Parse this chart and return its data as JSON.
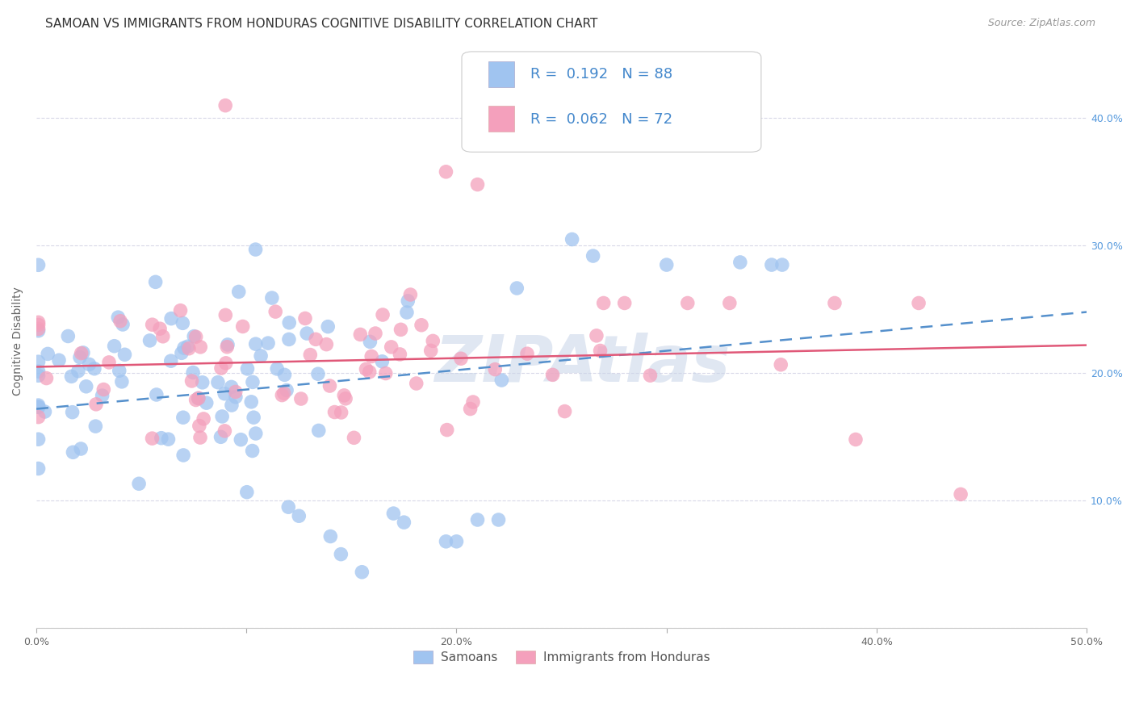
{
  "title": "SAMOAN VS IMMIGRANTS FROM HONDURAS COGNITIVE DISABILITY CORRELATION CHART",
  "source": "Source: ZipAtlas.com",
  "ylabel": "Cognitive Disability",
  "xlim": [
    0.0,
    0.5
  ],
  "ylim": [
    0.0,
    0.45
  ],
  "xtick_vals": [
    0.0,
    0.1,
    0.2,
    0.3,
    0.4,
    0.5
  ],
  "xtick_labels": [
    "0.0%",
    "",
    "20.0%",
    "",
    "40.0%",
    "50.0%"
  ],
  "ytick_right_vals": [
    0.1,
    0.2,
    0.3,
    0.4
  ],
  "ytick_right_labels": [
    "10.0%",
    "20.0%",
    "30.0%",
    "40.0%"
  ],
  "samoans_color": "#a0c4f0",
  "hondurans_color": "#f4a0bc",
  "trend_samoan_color": "#5590cc",
  "trend_honduran_color": "#e05878",
  "background_color": "#ffffff",
  "grid_color": "#d8d8e8",
  "watermark": "ZIPAtlas",
  "watermark_color": "#c8d4e8",
  "R_samoan": 0.192,
  "N_samoan": 88,
  "R_honduran": 0.062,
  "N_honduran": 72,
  "legend_color": "#4488cc",
  "title_fontsize": 11,
  "source_fontsize": 9,
  "axis_label_fontsize": 10,
  "tick_fontsize": 9,
  "legend_fontsize": 13,
  "right_tick_color": "#5599dd",
  "ylabel_color": "#666666",
  "xtick_color": "#666666",
  "trend_samoan_start_y": 0.172,
  "trend_samoan_end_y": 0.248,
  "trend_honduran_start_y": 0.205,
  "trend_honduran_end_y": 0.222
}
